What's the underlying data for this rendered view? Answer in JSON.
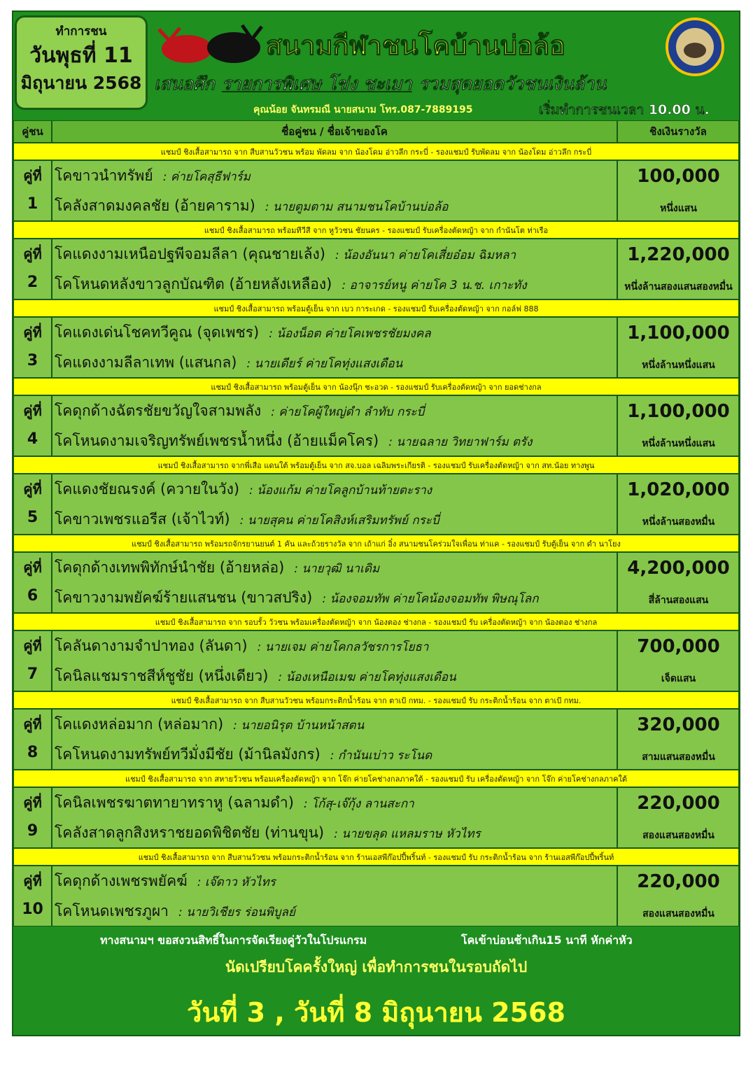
{
  "header": {
    "date_box": {
      "line1": "ทำการชน",
      "line2": "วันพุธที่ 11",
      "line3": "มิถุนายน 2568"
    },
    "title": "สนามกีฬาชนโคบ้านบ่อล้อ",
    "subtitle": {
      "prefix": "เสนอศึก",
      "event": "รายการพิเศษ โข่ง ชะเมา",
      "suffix": "รวมสุดยอดวัวชนเงินล้าน"
    },
    "contact": "คุณน้อย จันทรมณี นายสนาม โทร.087-7889195",
    "start_time": "เริ่มทำการชนเวลา 10.00 น."
  },
  "table": {
    "columns": [
      "คู่ชน",
      "ชื่อคู่ชน / ชื่อเจ้าของโค",
      "ชิงเงินรางวัล"
    ],
    "rows": [
      {
        "note": "แชมป์ ชิงเสื้อสามารถ จาก สืบสานวัวชน พร้อม พัดลม จาก น้องโดม อ่าวลึก กระบี่ - รองแชมป์ รับพัดลม  จาก น้องโดม อ่าวลึก กระบี่",
        "label": "คู่ที่",
        "number": "1",
        "bull1": "โคขาวนำทรัพย์",
        "owner1": ": ค่ายโคสุธีฟาร์ม",
        "bull2": "โคลังสาดมงคลชัย (อ้ายคาราม)",
        "owner2": ": นายตูมตาม สนามชนโคบ้านบ่อล้อ",
        "prize": "100,000",
        "prize_text": "หนึ่งแสน"
      },
      {
        "note": "แชมป์ ชิงเสื้อสามารถ พร้อมทีวีสี จาก หูวัวชน ชัยนคร - รองแชมป์ รับเครื่องตัดหญ้า จาก กำนันโต ท่าเรือ",
        "label": "คู่ที่",
        "number": "2",
        "bull1": "โคแดงงามเหนือปฐพีจอมลีลา (คุณชายเล้ง)",
        "owner1": ": น้องอันนา ค่ายโคเสี่ยอ๋อม ฉิมหลา",
        "bull2": "โคโหนดหลังขาวลูกบัณฑิต (อ้ายหลังเหลือง)",
        "owner2": ": อาจารย์หนู ค่ายโค 3 น.ช. เกาะทัง",
        "prize": "1,220,000",
        "prize_text": "หนึ่งล้านสองแสนสองหมื่น"
      },
      {
        "note": "แชมป์ ชิงเสื้อสามารถ พร้อมตู้เย็น จาก เบว การะเกด - รองแชมป์ รับเครื่องตัดหญ้า จาก กอล์ฟ 888",
        "label": "คู่ที่",
        "number": "3",
        "bull1": "โคแดงเด่นโชคทวีคูณ (จุดเพชร)",
        "owner1": ": น้องน็อต ค่ายโคเพชรชัยมงคล",
        "bull2": "โคแดงงามลีลาเทพ (แสนกล)",
        "owner2": ": นายเดียร์ ค่ายโคทุ่งแสงเดือน",
        "prize": "1,100,000",
        "prize_text": "หนึ่งล้านหนึ่งแสน"
      },
      {
        "note": "แชมป์ ชิงเสื้อสามารถ  พร้อมตู้เย็น จาก น้องนุ๊ก ชะอวด - รองแชมป์ รับเครื่องตัดหญ้า จาก ยอดช่างกล",
        "label": "คู่ที่",
        "number": "4",
        "bull1": "โคดุกด้างฉัตรชัยขวัญใจสามพลัง",
        "owner1": ": ค่ายโคผู้ใหญ่ดำ ลำทับ กระบี่",
        "bull2": "โคโหนดงามเจริญทรัพย์เพชรน้ำหนึ่ง (อ้ายแม็คโคร)",
        "owner2": ": นายฉลาย วิทยาฟาร์ม ตรัง",
        "prize": "1,100,000",
        "prize_text": "หนึ่งล้านหนึ่งแสน"
      },
      {
        "note": "แชมป์ ชิงเสื้อสามารถ จากพี่เสือ แดนใต้ พร้อมตู้เย็น จาก สจ.บอล เฉลิมพระเกียรติ - รองแชมป์ รับเครื่องตัดหญ้า จาก สท.น้อย ทางพูน",
        "label": "คู่ที่",
        "number": "5",
        "bull1": "โคแดงชัยณรงค์ (ควายในวัง)",
        "owner1": ": น้องแก้ม ค่ายโคลูกบ้านท้ายตะราง",
        "bull2": "โคขาวเพชรแอรีส (เจ้าไวท์)",
        "owner2": ": นายสุคน ค่ายโคสิงห์เสริมทรัพย์ กระบี่",
        "prize": "1,020,000",
        "prize_text": "หนึ่งล้านสองหมื่น"
      },
      {
        "note": "แชมป์ ชิงเสื้อสามารถ พร้อมรถจักรยานยนต์ 1 คัน และถ้วยรางวัล จาก เถ้าแก่ อิ๋ง สนามชนโคร่วมใจเพื่อน ท่าแค  - รองแชมป์ รับตู้เย็น จาก ดำ นาโยง",
        "label": "คู่ที่",
        "number": "6",
        "bull1": "โคดุกด้างเทพพิทักษ์นำชัย (อ้ายหล่อ)",
        "owner1": ": นายวุฒิ  นาเดิม",
        "bull2": "โคขาวงามพยัคฆ์ร้ายแสนชน (ขาวสปริง)",
        "owner2": ": น้องจอมทัพ ค่ายโคน้องจอมทัพ พิษณุโลก",
        "prize": "4,200,000",
        "prize_text": "สี่ล้านสองแสน"
      },
      {
        "note": "แชมป์ ชิงเสื้อสามารถ จาก รอบรั้ว วัวชน พร้อมเครื่องตัดหญ้า จาก น้องตอง ช่างกล  - รองแชมป์ รับ เครื่องตัดหญ้า จาก น้องตอง ช่างกล",
        "label": "คู่ที่",
        "number": "7",
        "bull1": "โคลันดางามจำปาทอง (ลันดา)",
        "owner1": ": นายเจม ค่ายโคกลวัชรการโยธา",
        "bull2": "โคนิลแชมราชสีห์ชูชัย (หนึ่งเดียว)",
        "owner2": ": น้องเหนือเมฆ ค่ายโคทุ่งแสงเดือน",
        "prize": "700,000",
        "prize_text": "เจ็ดแสน"
      },
      {
        "note": "แชมป์  ชิงเสื้อสามารถ จาก สืบสานวัวชน พร้อมกระติกน้ำร้อน จาก ตาเป้ กทม.  - รองแชมป์ รับ  กระติกน้ำร้อน จาก ตาเป้ กทม.",
        "label": "คู่ที่",
        "number": "8",
        "bull1": "โคแดงหล่อมาก (หล่อมาก)",
        "owner1": ": นายอนิรุต บ้านหน้าสตน",
        "bull2": "โคโหนดงามทรัพย์ทวีมั่งมีชัย (ม้านิลมังกร)",
        "owner2": ": กำนันเบ่าว ระโนด",
        "prize": "320,000",
        "prize_text": "สามแสนสองหมื่น"
      },
      {
        "note": "แชมป์  ชิงเสื้อสามารถ จาก สหายวัวชน พร้อมเครื่องตัดหญ้า จาก โจ๊ก ค่ายโคช่างกลภาคใต้  - รองแชมป์ รับ  เครื่องตัดหญ้า จาก โจ๊ก ค่ายโคช่างกลภาคใต้",
        "label": "คู่ที่",
        "number": "9",
        "bull1": "โคนิลเพชรฆาตทายาทราหู (ฉลามดำ)",
        "owner1": ": โก้สุ-เจ๊กุ้ง  ลานสะกา",
        "bull2": "โคลังสาดลูกสิงหราชยอดพิชิตชัย (ท่านขุน)",
        "owner2": ": นายขลุด แหลมราษ  หัวไทร",
        "prize": "220,000",
        "prize_text": "สองแสนสองหมื่น"
      },
      {
        "note": "แชมป์  ชิงเสื้อสามารถ จาก สืบสานวัวชน พร้อมกระติกน้ำร้อน จาก ร้านเอสพีก๊อปปี้พริ้นท์  - รองแชมป์ รับ  กระติกน้ำร้อน จาก ร้านเอสพีก๊อปปี้พริ้นท์",
        "label": "คู่ที่",
        "number": "10",
        "bull1": "โคดุกด้างเพชรพยัคฆ์",
        "owner1": ": เจ๊ดาว หัวไทร",
        "bull2": "โคโหนดเพชรภูผา",
        "owner2": ": นายวิเชียร ร่อนพิบูลย์",
        "prize": "220,000",
        "prize_text": "สองแสนสองหมื่น"
      }
    ]
  },
  "footer": {
    "notice": "ทางสนามฯ ขอสงวนสิทธิ์ในการจัดเรียงคู่วัวในโปรแกรม",
    "late_rule": "โคเข้าบ่อนช้าเกิน15 นาที หักค่าหัว",
    "next_round": "นัดเปรียบโคครั้งใหญ่ เพื่อทำการชนในรอบถัดไป",
    "next_dates": "วันที่ 3 , วันที่ 8 มิถุนายน 2568"
  }
}
